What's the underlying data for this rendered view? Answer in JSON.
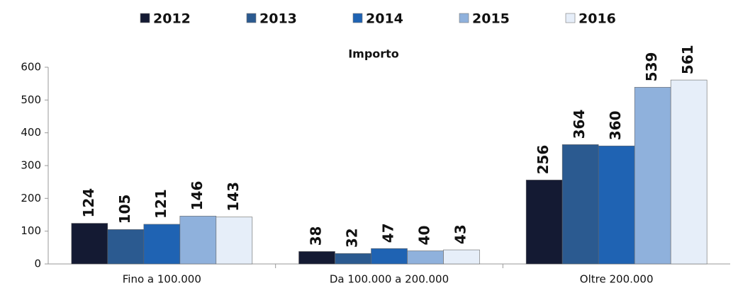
{
  "chart_data": {
    "type": "bar",
    "title": "Importo",
    "categories": [
      "Fino a 100.000",
      "Da 100.000 a 200.000",
      "Oltre 200.000"
    ],
    "series": [
      {
        "name": "2012",
        "color": "#141a33",
        "values": [
          124,
          38,
          256
        ]
      },
      {
        "name": "2013",
        "color": "#2b5a90",
        "values": [
          105,
          32,
          364
        ]
      },
      {
        "name": "2014",
        "color": "#1f63b3",
        "values": [
          121,
          47,
          360
        ]
      },
      {
        "name": "2015",
        "color": "#8fb1dc",
        "values": [
          146,
          40,
          539
        ]
      },
      {
        "name": "2016",
        "color": "#e6eef9",
        "values": [
          143,
          43,
          561
        ]
      }
    ],
    "ylim": [
      0,
      600
    ],
    "yticks": [
      0,
      100,
      200,
      300,
      400,
      500,
      600
    ],
    "legend": "top"
  }
}
